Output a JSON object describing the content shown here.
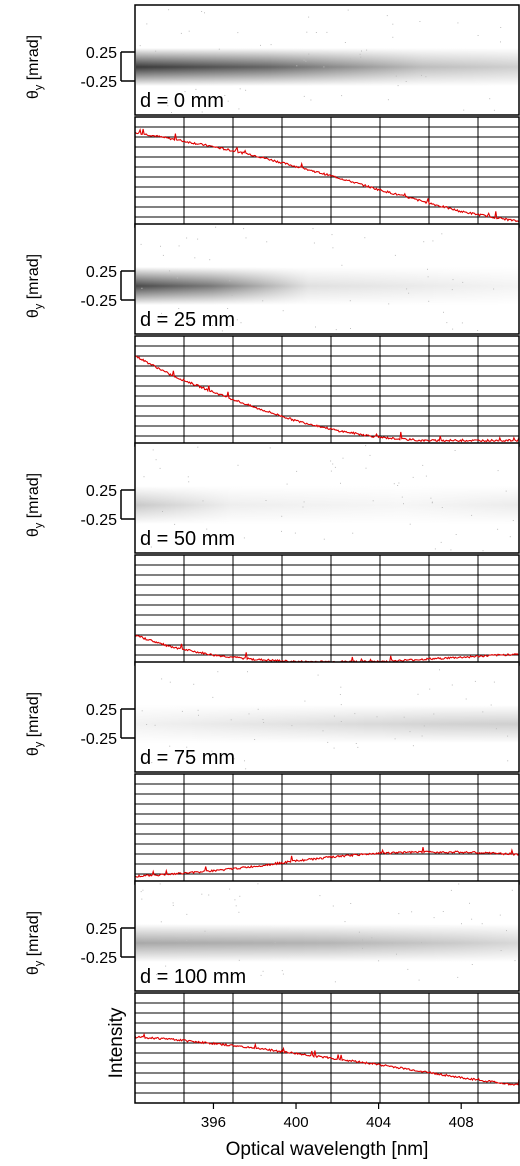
{
  "chart_data": {
    "type": "line",
    "xlabel": "Optical wavelength [nm]",
    "x_ticks": [
      "396",
      "400",
      "404",
      "408"
    ],
    "x_range": [
      392.2,
      410.8
    ],
    "ylabel_image": "θ",
    "ylabel_image_sub": "y",
    "ylabel_image_unit": "[mrad]",
    "ylabel_spectrum": "Intensity",
    "angle_ticks": [
      "0.25",
      "-0.25"
    ],
    "line_color": "#e00000",
    "panels": [
      {
        "label": "d = 0 mm",
        "spectrum": {
          "x": [
            392.2,
            394,
            396,
            398,
            400,
            402,
            404,
            406,
            408,
            410.8
          ],
          "y": [
            0.86,
            0.8,
            0.73,
            0.65,
            0.55,
            0.45,
            0.34,
            0.24,
            0.14,
            0.05
          ]
        }
      },
      {
        "label": "d = 25 mm",
        "spectrum": {
          "x": [
            392.2,
            394,
            396,
            398,
            400,
            402,
            404,
            406,
            408,
            410.8
          ],
          "y": [
            0.82,
            0.64,
            0.49,
            0.35,
            0.23,
            0.14,
            0.08,
            0.05,
            0.05,
            0.05
          ]
        }
      },
      {
        "label": "d = 50 mm",
        "spectrum": {
          "x": [
            392.2,
            394,
            396,
            398,
            400,
            402,
            404,
            406,
            408,
            410.8
          ],
          "y": [
            0.27,
            0.16,
            0.09,
            0.05,
            0.03,
            0.03,
            0.03,
            0.05,
            0.07,
            0.1
          ]
        }
      },
      {
        "label": "d = 75 mm",
        "spectrum": {
          "x": [
            392.2,
            394,
            396,
            398,
            400,
            402,
            404,
            406,
            408,
            410.8
          ],
          "y": [
            0.07,
            0.09,
            0.12,
            0.16,
            0.21,
            0.25,
            0.28,
            0.29,
            0.29,
            0.27
          ]
        }
      },
      {
        "label": "d = 100 mm",
        "spectrum": {
          "x": [
            392.2,
            394,
            396,
            398,
            400,
            402,
            404,
            406,
            408,
            410.8
          ],
          "y": [
            0.6,
            0.58,
            0.54,
            0.5,
            0.45,
            0.4,
            0.35,
            0.29,
            0.23,
            0.16
          ]
        }
      }
    ]
  }
}
